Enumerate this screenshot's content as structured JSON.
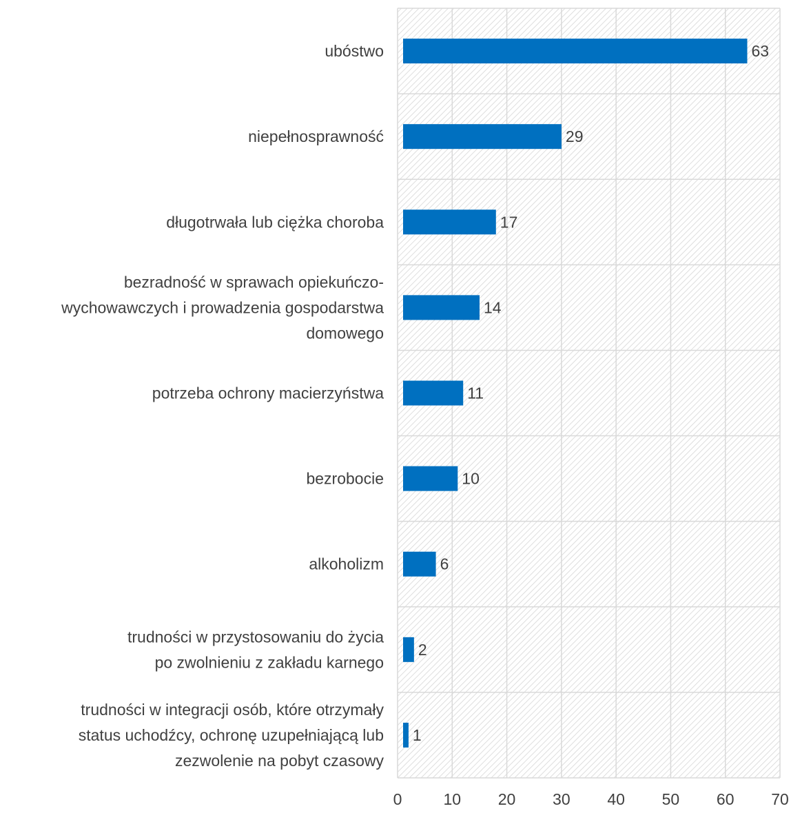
{
  "chart_data": {
    "type": "bar",
    "orientation": "horizontal",
    "categories": [
      "ubóstwo",
      "niepełnosprawność",
      "długotrwała lub ciężka choroba",
      "bezradność w sprawach opiekuńczo-wychowawczych i prowadzenia gospodarstwa domowego",
      "potrzeba ochrony macierzyństwa",
      "bezrobocie",
      "alkoholizm",
      "trudności w przystosowaniu do życia po zwolnieniu z zakładu karnego",
      "trudności w integracji osób, które otrzymały status uchodźcy, ochronę uzupełniającą lub zezwolenie na pobyt czasowy"
    ],
    "category_lines": [
      [
        "ubóstwo"
      ],
      [
        "niepełnosprawność"
      ],
      [
        "długotrwała lub ciężka choroba"
      ],
      [
        "bezradność w sprawach opiekuńczo-",
        "wychowawczych i prowadzenia gospodarstwa",
        "domowego"
      ],
      [
        "potrzeba ochrony macierzyństwa"
      ],
      [
        "bezrobocie"
      ],
      [
        "alkoholizm"
      ],
      [
        "trudności w przystosowaniu do życia",
        "po zwolnieniu z zakładu karnego"
      ],
      [
        "trudności w integracji osób, które otrzymały",
        "status uchodźcy, ochronę uzupełniającą lub",
        "zezwolenie na pobyt czasowy"
      ]
    ],
    "values": [
      63,
      29,
      17,
      14,
      11,
      10,
      6,
      2,
      1
    ],
    "xlim": [
      0,
      70
    ],
    "xticks": [
      0,
      10,
      20,
      30,
      40,
      50,
      60,
      70
    ],
    "grid": true,
    "background": "diagonal-hatch",
    "bar_color": "#0070c0",
    "title": "",
    "xlabel": "",
    "ylabel": ""
  }
}
